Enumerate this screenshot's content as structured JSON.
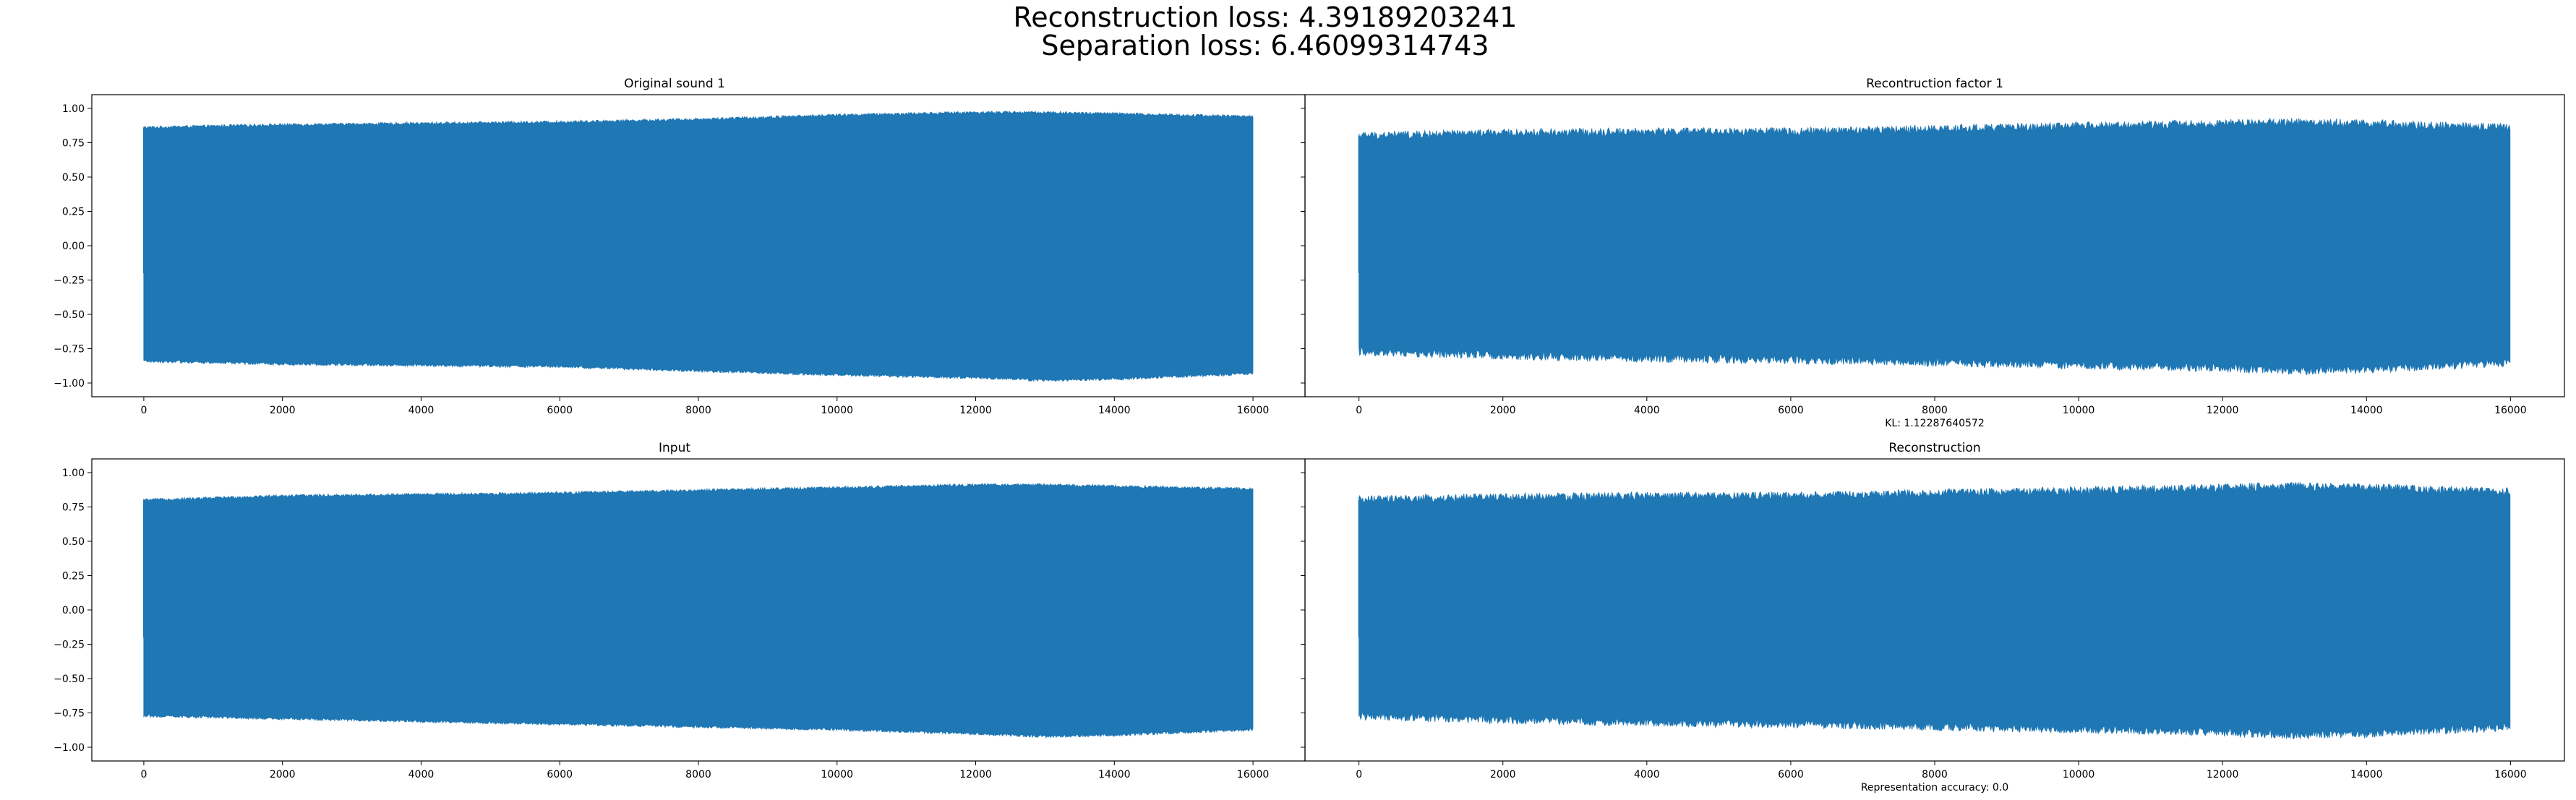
{
  "figure": {
    "suptitle_line1": "Reconstruction loss: 4.39189203241",
    "suptitle_line2": "Separation loss: 6.46099314743"
  },
  "colors": {
    "series": "#1f77b4",
    "axes": "#000000",
    "background": "#ffffff"
  },
  "chart_data": [
    {
      "type": "line",
      "title": "Original sound 1",
      "xlabel": "",
      "ylabel": "",
      "xlim": [
        -750,
        16750
      ],
      "ylim": [
        -1.1,
        1.1
      ],
      "x_ticks": [
        0,
        2000,
        4000,
        6000,
        8000,
        10000,
        12000,
        14000,
        16000
      ],
      "y_ticks": [
        1.0,
        0.75,
        0.5,
        0.25,
        0.0,
        -0.25,
        -0.5,
        -0.75,
        -1.0
      ],
      "x_tick_labels": [
        "0",
        "2000",
        "4000",
        "6000",
        "8000",
        "10000",
        "12000",
        "14000",
        "16000"
      ],
      "y_tick_labels": [
        "1.00",
        "0.75",
        "0.50",
        "0.25",
        "0.00",
        "−0.25",
        "−0.50",
        "−0.75",
        "−1.00"
      ],
      "series": [
        {
          "x_range": [
            0,
            16000
          ],
          "envelope": {
            "x": [
              0,
              2000,
              4000,
              6000,
              8000,
              10000,
              12000,
              13000,
              14000,
              16000
            ],
            "upper": [
              0.86,
              0.88,
              0.89,
              0.9,
              0.92,
              0.95,
              0.97,
              0.97,
              0.96,
              0.94
            ],
            "lower": [
              -0.84,
              -0.86,
              -0.87,
              -0.88,
              -0.91,
              -0.94,
              -0.96,
              -0.98,
              -0.97,
              -0.93
            ]
          },
          "noise": 0.01
        }
      ]
    },
    {
      "type": "line",
      "title": "Recontruction factor 1",
      "xlabel": "KL: 1.12287640572",
      "ylabel": "",
      "xlim": [
        -750,
        16750
      ],
      "ylim": [
        -1.1,
        1.1
      ],
      "x_ticks": [
        0,
        2000,
        4000,
        6000,
        8000,
        10000,
        12000,
        14000,
        16000
      ],
      "y_ticks": [
        1.0,
        0.75,
        0.5,
        0.25,
        0.0,
        -0.25,
        -0.5,
        -0.75,
        -1.0
      ],
      "x_tick_labels": [
        "0",
        "2000",
        "4000",
        "6000",
        "8000",
        "10000",
        "12000",
        "14000",
        "16000"
      ],
      "y_tick_labels": [],
      "series": [
        {
          "x_range": [
            0,
            16000
          ],
          "envelope": {
            "x": [
              0,
              2000,
              4000,
              6000,
              8000,
              10000,
              12000,
              13000,
              14000,
              16000
            ],
            "upper": [
              0.8,
              0.82,
              0.83,
              0.83,
              0.85,
              0.87,
              0.89,
              0.9,
              0.89,
              0.86
            ],
            "lower": [
              -0.77,
              -0.8,
              -0.82,
              -0.83,
              -0.85,
              -0.87,
              -0.89,
              -0.91,
              -0.9,
              -0.85
            ]
          },
          "noise": 0.03
        }
      ]
    },
    {
      "type": "line",
      "title": "Input",
      "xlabel": "",
      "ylabel": "",
      "xlim": [
        -750,
        16750
      ],
      "ylim": [
        -1.1,
        1.1
      ],
      "x_ticks": [
        0,
        2000,
        4000,
        6000,
        8000,
        10000,
        12000,
        14000,
        16000
      ],
      "y_ticks": [
        1.0,
        0.75,
        0.5,
        0.25,
        0.0,
        -0.25,
        -0.5,
        -0.75,
        -1.0
      ],
      "x_tick_labels": [
        "0",
        "2000",
        "4000",
        "6000",
        "8000",
        "10000",
        "12000",
        "14000",
        "16000"
      ],
      "y_tick_labels": [
        "1.00",
        "0.75",
        "0.50",
        "0.25",
        "0.00",
        "−0.25",
        "−0.50",
        "−0.75",
        "−1.00"
      ],
      "series": [
        {
          "x_range": [
            0,
            16000
          ],
          "envelope": {
            "x": [
              0,
              2000,
              4000,
              6000,
              8000,
              10000,
              12000,
              13000,
              14000,
              16000
            ],
            "upper": [
              0.8,
              0.83,
              0.84,
              0.85,
              0.87,
              0.89,
              0.91,
              0.91,
              0.9,
              0.88
            ],
            "lower": [
              -0.77,
              -0.79,
              -0.81,
              -0.83,
              -0.85,
              -0.87,
              -0.9,
              -0.92,
              -0.91,
              -0.87
            ]
          },
          "noise": 0.01
        }
      ]
    },
    {
      "type": "line",
      "title": "Reconstruction",
      "xlabel": "Representation accuracy: 0.0",
      "ylabel": "",
      "xlim": [
        -750,
        16750
      ],
      "ylim": [
        -1.1,
        1.1
      ],
      "x_ticks": [
        0,
        2000,
        4000,
        6000,
        8000,
        10000,
        12000,
        14000,
        16000
      ],
      "y_ticks": [
        1.0,
        0.75,
        0.5,
        0.25,
        0.0,
        -0.25,
        -0.5,
        -0.75,
        -1.0
      ],
      "x_tick_labels": [
        "0",
        "2000",
        "4000",
        "6000",
        "8000",
        "10000",
        "12000",
        "14000",
        "16000"
      ],
      "y_tick_labels": [],
      "series": [
        {
          "x_range": [
            0,
            16000
          ],
          "envelope": {
            "x": [
              0,
              2000,
              4000,
              6000,
              8000,
              10000,
              12000,
              13000,
              14000,
              16000
            ],
            "upper": [
              0.8,
              0.82,
              0.83,
              0.83,
              0.85,
              0.87,
              0.89,
              0.9,
              0.89,
              0.86
            ],
            "lower": [
              -0.77,
              -0.8,
              -0.82,
              -0.83,
              -0.85,
              -0.87,
              -0.89,
              -0.91,
              -0.9,
              -0.85
            ]
          },
          "noise": 0.03
        }
      ]
    }
  ]
}
